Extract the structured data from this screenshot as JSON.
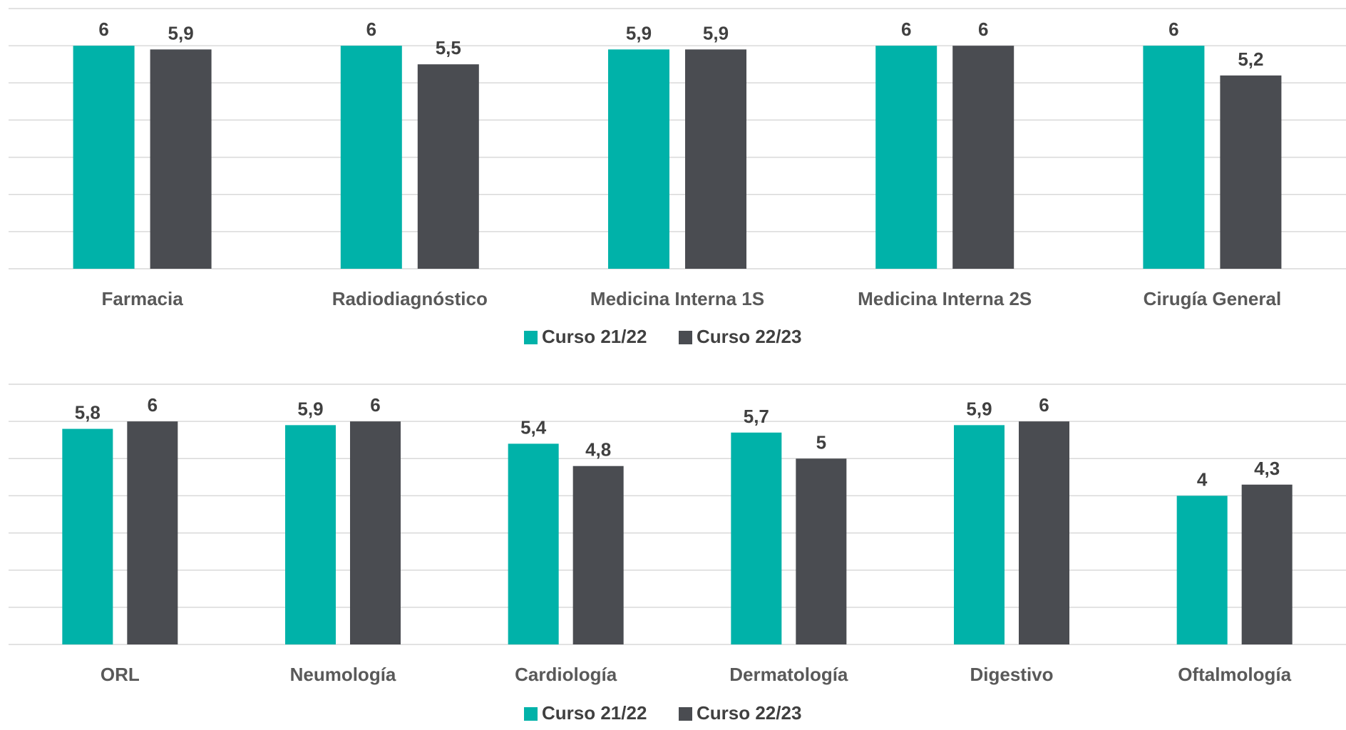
{
  "chart_data": [
    {
      "type": "bar",
      "categories": [
        "Farmacia",
        "Radiodiagnóstico",
        "Medicina Interna 1S",
        "Medicina Interna 2S",
        "Cirugía General"
      ],
      "series": [
        {
          "name": "Curso 21/22",
          "values": [
            6,
            6,
            5.9,
            6,
            6
          ],
          "labels": [
            "6",
            "6",
            "5,9",
            "6",
            "6"
          ]
        },
        {
          "name": "Curso 22/23",
          "values": [
            5.9,
            5.5,
            5.9,
            6,
            5.2
          ],
          "labels": [
            "5,9",
            "5,5",
            "5,9",
            "6",
            "5,2"
          ]
        }
      ],
      "ylim": [
        0,
        7
      ],
      "grid": true,
      "legend": "bottom"
    },
    {
      "type": "bar",
      "categories": [
        "ORL",
        "Neumología",
        "Cardiología",
        "Dermatología",
        "Digestivo",
        "Oftalmología"
      ],
      "series": [
        {
          "name": "Curso 21/22",
          "values": [
            5.8,
            5.9,
            5.4,
            5.7,
            5.9,
            4
          ],
          "labels": [
            "5,8",
            "5,9",
            "5,4",
            "5,7",
            "5,9",
            "4"
          ]
        },
        {
          "name": "Curso 22/23",
          "values": [
            6,
            6,
            4.8,
            5,
            6,
            4.3
          ],
          "labels": [
            "6",
            "6",
            "4,8",
            "5",
            "6",
            "4,3"
          ]
        }
      ],
      "ylim": [
        0,
        7
      ],
      "grid": true,
      "legend": "bottom"
    }
  ],
  "colors": {
    "series1": "#00b2a9",
    "series2": "#4a4c51"
  }
}
